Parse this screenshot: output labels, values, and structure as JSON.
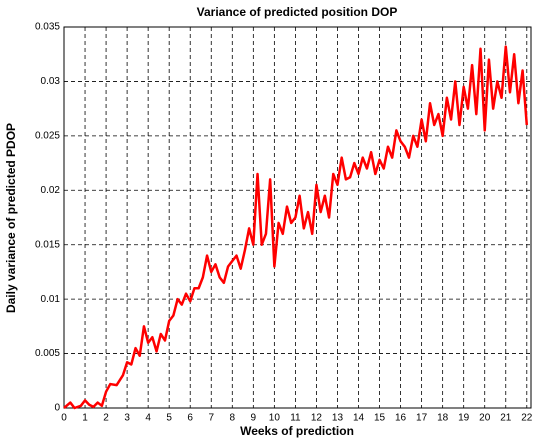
{
  "chart_data": {
    "type": "line",
    "title": "Variance of predicted position DOP",
    "x_label": "Weeks of prediction",
    "y_label": "Daily variance of predicted PDOP",
    "xlim": [
      0,
      22.2
    ],
    "ylim": [
      0,
      0.035
    ],
    "xticks": [
      0,
      1,
      2,
      3,
      4,
      5,
      6,
      7,
      8,
      9,
      10,
      11,
      12,
      13,
      14,
      15,
      16,
      17,
      18,
      19,
      20,
      21,
      22
    ],
    "yticks": [
      0,
      0.005,
      0.01,
      0.015,
      0.02,
      0.025,
      0.03,
      0.035
    ],
    "grid": true,
    "series": [
      {
        "color": "#ff0000",
        "x": [
          0,
          0.3,
          0.5,
          0.8,
          1.0,
          1.2,
          1.4,
          1.6,
          1.8,
          2.0,
          2.2,
          2.5,
          2.8,
          3.0,
          3.2,
          3.4,
          3.6,
          3.8,
          4.0,
          4.2,
          4.4,
          4.6,
          4.8,
          5.0,
          5.2,
          5.4,
          5.6,
          5.8,
          6.0,
          6.2,
          6.4,
          6.6,
          6.8,
          7.0,
          7.2,
          7.4,
          7.6,
          7.8,
          8.0,
          8.2,
          8.4,
          8.6,
          8.8,
          9.0,
          9.2,
          9.4,
          9.6,
          9.8,
          10.0,
          10.2,
          10.4,
          10.6,
          10.8,
          11.0,
          11.2,
          11.4,
          11.6,
          11.8,
          12.0,
          12.2,
          12.4,
          12.6,
          12.8,
          13.0,
          13.2,
          13.4,
          13.6,
          13.8,
          14.0,
          14.2,
          14.4,
          14.6,
          14.8,
          15.0,
          15.2,
          15.4,
          15.6,
          15.8,
          16.0,
          16.2,
          16.4,
          16.6,
          16.8,
          17.0,
          17.2,
          17.4,
          17.6,
          17.8,
          18.0,
          18.2,
          18.4,
          18.6,
          18.8,
          19.0,
          19.2,
          19.4,
          19.6,
          19.8,
          20.0,
          20.2,
          20.4,
          20.6,
          20.8,
          21.0,
          21.2,
          21.4,
          21.6,
          21.8,
          22.0
        ],
        "values": [
          0,
          0.0005,
          0,
          0.0002,
          0.0007,
          0.0003,
          0.0001,
          0.0005,
          0.0002,
          0.0015,
          0.0022,
          0.0021,
          0.003,
          0.0042,
          0.004,
          0.0055,
          0.0048,
          0.0075,
          0.006,
          0.0065,
          0.0052,
          0.0068,
          0.0062,
          0.008,
          0.0085,
          0.01,
          0.0095,
          0.0105,
          0.0098,
          0.011,
          0.011,
          0.012,
          0.014,
          0.0125,
          0.0132,
          0.012,
          0.0115,
          0.013,
          0.0135,
          0.014,
          0.0128,
          0.0145,
          0.0165,
          0.015,
          0.0215,
          0.015,
          0.016,
          0.021,
          0.013,
          0.017,
          0.016,
          0.0185,
          0.017,
          0.0175,
          0.0195,
          0.0165,
          0.018,
          0.016,
          0.0205,
          0.018,
          0.0195,
          0.0175,
          0.0215,
          0.0205,
          0.023,
          0.021,
          0.0212,
          0.0225,
          0.0215,
          0.023,
          0.022,
          0.0235,
          0.0215,
          0.0228,
          0.022,
          0.024,
          0.023,
          0.0255,
          0.0245,
          0.024,
          0.023,
          0.025,
          0.024,
          0.0265,
          0.0245,
          0.028,
          0.026,
          0.027,
          0.025,
          0.0285,
          0.0265,
          0.03,
          0.026,
          0.0295,
          0.0275,
          0.0315,
          0.027,
          0.033,
          0.0255,
          0.032,
          0.0275,
          0.03,
          0.0285,
          0.0332,
          0.029,
          0.0325,
          0.028,
          0.031,
          0.026
        ]
      }
    ]
  }
}
